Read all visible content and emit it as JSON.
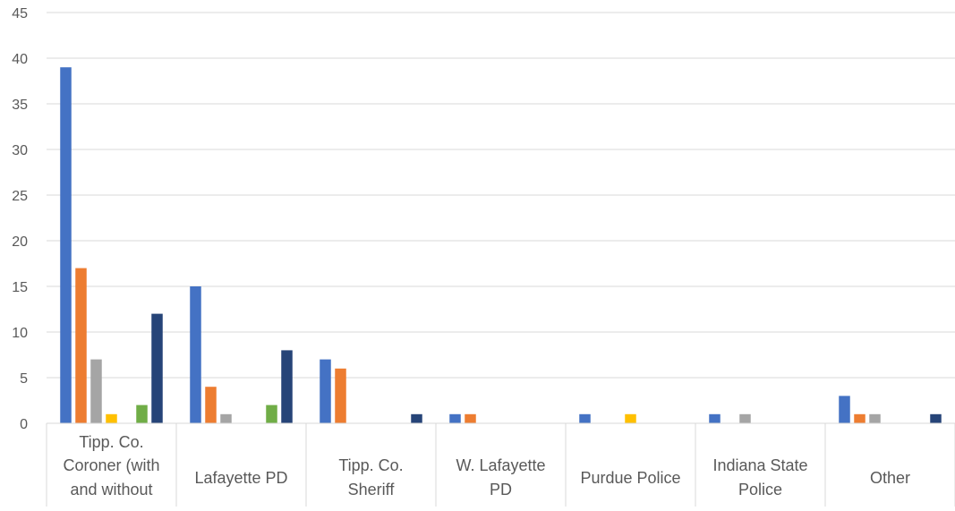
{
  "chart_data": {
    "type": "bar",
    "title": "",
    "xlabel": "",
    "ylabel": "",
    "ylim": [
      0,
      45
    ],
    "yticks": [
      0,
      5,
      10,
      15,
      20,
      25,
      30,
      35,
      40,
      45
    ],
    "grid": true,
    "categories": [
      [
        "Tipp. Co.",
        "Coroner (with",
        "and without"
      ],
      [
        "Lafayette PD"
      ],
      [
        "Tipp. Co.",
        "Sheriff"
      ],
      [
        "W. Lafayette",
        "PD"
      ],
      [
        "Purdue Police"
      ],
      [
        "Indiana State",
        "Police"
      ],
      [
        "Other"
      ]
    ],
    "series": [
      {
        "color": "#4472C4",
        "values": [
          39,
          15,
          7,
          1,
          1,
          1,
          3
        ]
      },
      {
        "color": "#ED7D31",
        "values": [
          17,
          4,
          6,
          1,
          0,
          0,
          1
        ]
      },
      {
        "color": "#A5A5A5",
        "values": [
          7,
          1,
          0,
          0,
          0,
          1,
          1
        ]
      },
      {
        "color": "#FFC000",
        "values": [
          1,
          0,
          0,
          0,
          1,
          0,
          0
        ]
      },
      {
        "color": "#5B9BD5",
        "values": [
          0,
          0,
          0,
          0,
          0,
          0,
          0
        ]
      },
      {
        "color": "#70AD47",
        "values": [
          2,
          2,
          0,
          0,
          0,
          0,
          0
        ]
      },
      {
        "color": "#264478",
        "values": [
          12,
          8,
          1,
          0,
          0,
          0,
          1
        ]
      }
    ]
  }
}
